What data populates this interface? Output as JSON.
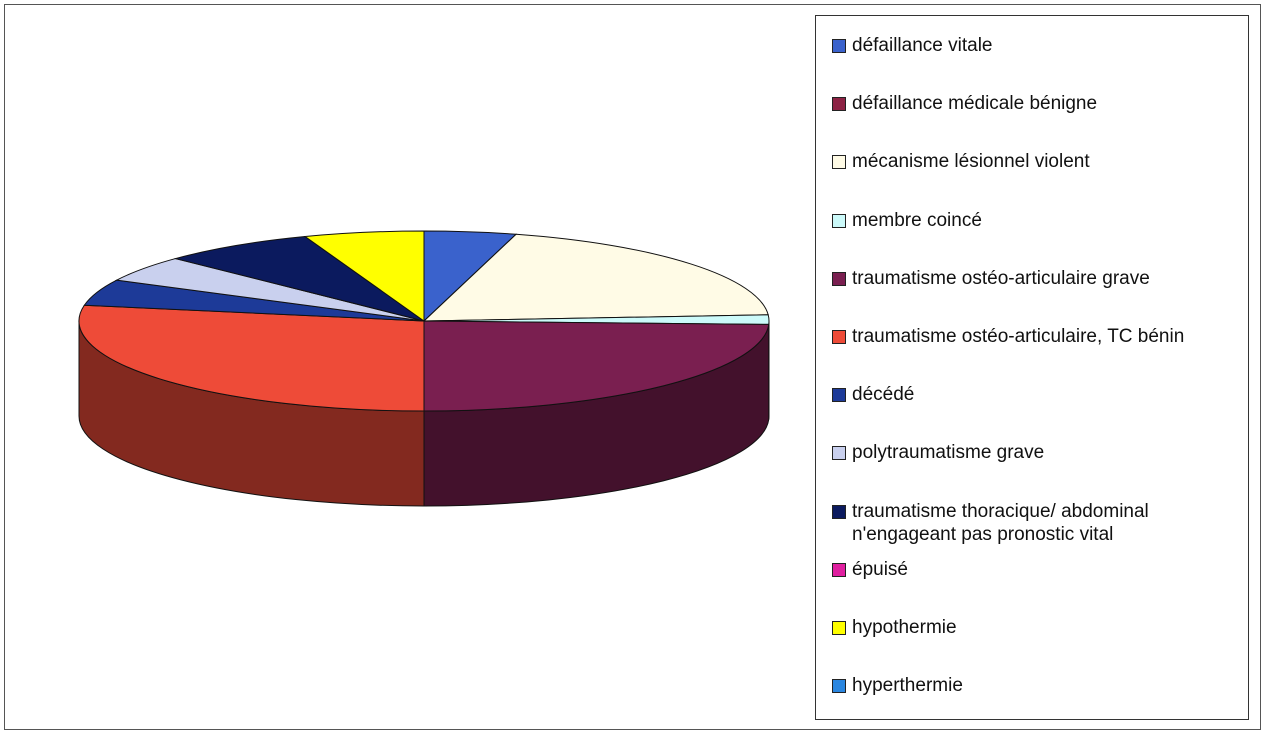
{
  "chart_data": {
    "type": "pie3d",
    "categories": [
      "défaillance vitale",
      "défaillance médicale bénigne",
      "mécanisme lésionnel violent",
      "membre coincé",
      "traumatisme ostéo-articulaire grave",
      "traumatisme ostéo-articulaire, TC bénin",
      "décédé",
      "polytraumatisme grave",
      "traumatisme thoracique/ abdominal n'engageant pas pronostic vital",
      "épuisé",
      "hypothermie",
      "hyperthermie"
    ],
    "values": [
      4.3,
      0,
      19.6,
      1.7,
      24.4,
      27.8,
      4.7,
      4.7,
      7.2,
      0,
      5.6,
      0
    ],
    "colors": [
      "#3a62cc",
      "#8c2244",
      "#fffbe6",
      "#ccfafa",
      "#7a1f50",
      "#ee4b38",
      "#1d3a98",
      "#c9d0ee",
      "#0b1a5e",
      "#e01fa0",
      "#ffff00",
      "#2a86e0"
    ],
    "legend": "right"
  }
}
